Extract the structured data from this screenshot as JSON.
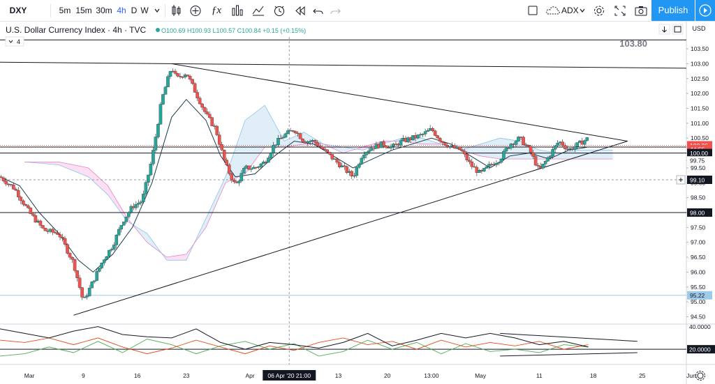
{
  "toolbar": {
    "symbol": "DXY",
    "intervals": [
      "5m",
      "15m",
      "30m",
      "4h",
      "D",
      "W"
    ],
    "active_interval": "4h",
    "indicator_name": "ADX",
    "publish_label": "Publish"
  },
  "legend": {
    "title": "U.S. Dollar Currency Index · 4h · TVC",
    "ohlc": "O100.69 H100.93 L100.57 C100.84 +0.15 (+0.15%)",
    "collapse_count": "4"
  },
  "price_axis": {
    "currency": "USD",
    "ticks": [
      "103.50",
      "103.00",
      "102.50",
      "102.00",
      "101.50",
      "101.00",
      "100.50",
      "100.00",
      "99.75",
      "99.50",
      "99.00",
      "98.50",
      "98.00",
      "97.50",
      "97.00",
      "96.50",
      "96.00",
      "95.50",
      "95.00",
      "94.50"
    ],
    "labels": [
      {
        "text": "103.80",
        "kind": "plain"
      },
      {
        "text": "100.26",
        "kind": "red"
      },
      {
        "text": "44:55",
        "kind": "red"
      },
      {
        "text": "100.00",
        "kind": "dark"
      },
      {
        "text": "99.75",
        "kind": "plain"
      },
      {
        "text": "99.10",
        "kind": "dark"
      },
      {
        "text": "98.00",
        "kind": "dark"
      },
      {
        "text": "95.22",
        "kind": "blue"
      }
    ]
  },
  "indicator_axis": {
    "ticks": [
      "40.0000",
      "20.0000"
    ]
  },
  "time_axis": {
    "ticks": [
      "Mar",
      "9",
      "16",
      "23",
      "Apr",
      "13",
      "20",
      "13:00",
      "May",
      "11",
      "18",
      "25",
      "Jun"
    ],
    "crosshair_label": "06 Apr '20  21:00"
  },
  "colors": {
    "up": "#26a69a",
    "down": "#ef5350",
    "accent": "#2196f3",
    "adx": "#131722",
    "di_plus": "#4caf50",
    "di_minus": "#e64a19",
    "kumo_bull": "#d6e8f5",
    "kumo_bear": "#fbd4ee"
  },
  "chart_data": {
    "type": "candlestick",
    "title": "U.S. Dollar Currency Index · 4h · TVC",
    "ylim": [
      94.3,
      103.9
    ],
    "xlim": [
      0,
      140
    ],
    "x_ticks": [
      {
        "label": "Mar",
        "x": 6
      },
      {
        "label": "9",
        "x": 17
      },
      {
        "label": "16",
        "x": 28
      },
      {
        "label": "23",
        "x": 38
      },
      {
        "label": "Apr",
        "x": 51
      },
      {
        "label": "13",
        "x": 69
      },
      {
        "label": "20",
        "x": 79
      },
      {
        "label": "13:00",
        "x": 88
      },
      {
        "label": "May",
        "x": 98
      },
      {
        "label": "11",
        "x": 110
      },
      {
        "label": "18",
        "x": 121
      },
      {
        "label": "25",
        "x": 131
      },
      {
        "label": "Jun",
        "x": 141
      }
    ],
    "price_path": [
      [
        0,
        99.2
      ],
      [
        3,
        98.8
      ],
      [
        6,
        98.0
      ],
      [
        9,
        97.4
      ],
      [
        12,
        97.3
      ],
      [
        15,
        96.3
      ],
      [
        17,
        95.0
      ],
      [
        19,
        95.7
      ],
      [
        21,
        96.4
      ],
      [
        23,
        96.9
      ],
      [
        25,
        97.7
      ],
      [
        27,
        98.2
      ],
      [
        29,
        98.4
      ],
      [
        31,
        99.8
      ],
      [
        33,
        101.8
      ],
      [
        35,
        102.9
      ],
      [
        36,
        102.5
      ],
      [
        38,
        102.7
      ],
      [
        40,
        102.0
      ],
      [
        42,
        101.3
      ],
      [
        44,
        100.8
      ],
      [
        46,
        99.6
      ],
      [
        48,
        98.9
      ],
      [
        50,
        99.5
      ],
      [
        52,
        99.5
      ],
      [
        54,
        99.7
      ],
      [
        56,
        100.3
      ],
      [
        58,
        100.6
      ],
      [
        60,
        100.8
      ],
      [
        62,
        100.4
      ],
      [
        64,
        100.4
      ],
      [
        66,
        100.1
      ],
      [
        68,
        99.8
      ],
      [
        70,
        99.5
      ],
      [
        72,
        99.2
      ],
      [
        74,
        100.0
      ],
      [
        76,
        100.2
      ],
      [
        78,
        100.3
      ],
      [
        80,
        100.2
      ],
      [
        82,
        100.4
      ],
      [
        84,
        100.5
      ],
      [
        86,
        100.6
      ],
      [
        88,
        100.8
      ],
      [
        90,
        100.4
      ],
      [
        92,
        100.2
      ],
      [
        94,
        100.1
      ],
      [
        96,
        99.6
      ],
      [
        98,
        99.3
      ],
      [
        100,
        99.6
      ],
      [
        102,
        99.8
      ],
      [
        104,
        100.3
      ],
      [
        106,
        100.5
      ],
      [
        108,
        100.1
      ],
      [
        110,
        99.4
      ],
      [
        112,
        99.9
      ],
      [
        114,
        100.4
      ],
      [
        116,
        100.1
      ],
      [
        118,
        100.3
      ],
      [
        120,
        100.5
      ]
    ],
    "ma": [
      [
        0,
        99.2
      ],
      [
        4,
        98.9
      ],
      [
        8,
        98.0
      ],
      [
        12,
        97.3
      ],
      [
        16,
        96.4
      ],
      [
        19,
        96.0
      ],
      [
        23,
        96.6
      ],
      [
        27,
        97.5
      ],
      [
        31,
        99.0
      ],
      [
        35,
        101.2
      ],
      [
        38,
        101.8
      ],
      [
        42,
        101.1
      ],
      [
        45,
        99.9
      ],
      [
        48,
        99.2
      ],
      [
        52,
        99.3
      ],
      [
        56,
        99.9
      ],
      [
        60,
        100.4
      ],
      [
        64,
        100.3
      ],
      [
        68,
        99.9
      ],
      [
        72,
        99.5
      ],
      [
        76,
        99.8
      ],
      [
        80,
        100.1
      ],
      [
        84,
        100.3
      ],
      [
        88,
        100.5
      ],
      [
        92,
        100.3
      ],
      [
        96,
        99.9
      ],
      [
        100,
        99.5
      ],
      [
        104,
        99.9
      ],
      [
        108,
        100.0
      ],
      [
        112,
        99.8
      ],
      [
        116,
        100.1
      ],
      [
        120,
        100.2
      ]
    ],
    "kumo_a": [
      [
        5,
        99.7
      ],
      [
        12,
        99.6
      ],
      [
        18,
        99.2
      ],
      [
        22,
        98.6
      ],
      [
        26,
        97.7
      ],
      [
        30,
        97.3
      ],
      [
        34,
        96.4
      ],
      [
        38,
        96.4
      ],
      [
        42,
        97.8
      ],
      [
        46,
        99.2
      ],
      [
        50,
        101.1
      ],
      [
        54,
        101.6
      ],
      [
        58,
        100.4
      ],
      [
        62,
        100.7
      ],
      [
        66,
        100.3
      ],
      [
        70,
        100.2
      ],
      [
        74,
        100.1
      ],
      [
        78,
        100.3
      ],
      [
        82,
        100.5
      ],
      [
        86,
        100.5
      ],
      [
        90,
        100.3
      ],
      [
        94,
        100.1
      ],
      [
        98,
        100.3
      ],
      [
        102,
        100.5
      ],
      [
        106,
        100.4
      ],
      [
        110,
        100.1
      ],
      [
        114,
        100.0
      ],
      [
        118,
        100.1
      ],
      [
        122,
        100.1
      ],
      [
        125,
        100.1
      ]
    ],
    "kumo_b": [
      [
        5,
        99.7
      ],
      [
        12,
        99.7
      ],
      [
        18,
        99.5
      ],
      [
        22,
        98.9
      ],
      [
        26,
        97.8
      ],
      [
        30,
        97.0
      ],
      [
        34,
        96.5
      ],
      [
        38,
        96.6
      ],
      [
        42,
        97.5
      ],
      [
        46,
        99.0
      ],
      [
        50,
        99.3
      ],
      [
        54,
        100.2
      ],
      [
        58,
        100.2
      ],
      [
        62,
        100.3
      ],
      [
        66,
        100.3
      ],
      [
        70,
        100.0
      ],
      [
        74,
        100.2
      ],
      [
        78,
        100.4
      ],
      [
        82,
        100.4
      ],
      [
        86,
        100.3
      ],
      [
        90,
        100.3
      ],
      [
        94,
        100.1
      ],
      [
        98,
        99.9
      ],
      [
        102,
        99.8
      ],
      [
        106,
        99.8
      ],
      [
        110,
        99.8
      ],
      [
        114,
        99.8
      ],
      [
        118,
        99.8
      ],
      [
        122,
        99.8
      ],
      [
        125,
        99.8
      ]
    ],
    "trendlines": [
      {
        "from": [
          35,
          103.0
        ],
        "to": [
          128,
          100.4
        ]
      },
      {
        "from": [
          15,
          94.55
        ],
        "to": [
          128,
          100.4
        ]
      },
      {
        "from": [
          0,
          103.05
        ],
        "to": [
          140,
          102.85
        ]
      }
    ],
    "h_lines": [
      {
        "y": 103.8,
        "style": "solid"
      },
      {
        "y": 100.26,
        "style": "dotted-red"
      },
      {
        "y": 100.2,
        "style": "solid"
      },
      {
        "y": 100.0,
        "style": "solid"
      },
      {
        "y": 99.1,
        "style": "dashed"
      },
      {
        "y": 98.0,
        "style": "solid"
      },
      {
        "y": 95.22,
        "style": "blue"
      }
    ],
    "indicator": {
      "name": "ADX",
      "ylim": [
        9,
        41
      ],
      "ticks": [
        40,
        20
      ],
      "level": 20,
      "adx": [
        [
          0,
          38
        ],
        [
          5,
          34
        ],
        [
          10,
          30
        ],
        [
          15,
          36
        ],
        [
          20,
          40
        ],
        [
          25,
          33
        ],
        [
          30,
          31
        ],
        [
          35,
          30
        ],
        [
          40,
          38
        ],
        [
          45,
          26
        ],
        [
          50,
          20
        ],
        [
          55,
          26
        ],
        [
          60,
          24
        ],
        [
          65,
          21
        ],
        [
          70,
          26
        ],
        [
          75,
          34
        ],
        [
          80,
          23
        ],
        [
          85,
          28
        ],
        [
          90,
          34
        ],
        [
          95,
          30
        ],
        [
          100,
          34
        ],
        [
          105,
          30
        ],
        [
          110,
          24
        ],
        [
          115,
          27
        ],
        [
          120,
          22
        ]
      ],
      "di_plus": [
        [
          0,
          14
        ],
        [
          5,
          16
        ],
        [
          10,
          22
        ],
        [
          15,
          17
        ],
        [
          20,
          27
        ],
        [
          25,
          17
        ],
        [
          30,
          29
        ],
        [
          35,
          24
        ],
        [
          40,
          16
        ],
        [
          45,
          23
        ],
        [
          50,
          27
        ],
        [
          55,
          20
        ],
        [
          60,
          25
        ],
        [
          65,
          14
        ],
        [
          70,
          18
        ],
        [
          75,
          28
        ],
        [
          80,
          20
        ],
        [
          85,
          26
        ],
        [
          90,
          16
        ],
        [
          95,
          25
        ],
        [
          100,
          18
        ],
        [
          105,
          20
        ],
        [
          110,
          17
        ],
        [
          115,
          24
        ],
        [
          120,
          22
        ]
      ],
      "di_minus": [
        [
          0,
          28
        ],
        [
          5,
          26
        ],
        [
          10,
          30
        ],
        [
          15,
          24
        ],
        [
          20,
          30
        ],
        [
          25,
          22
        ],
        [
          30,
          16
        ],
        [
          35,
          21
        ],
        [
          40,
          28
        ],
        [
          45,
          22
        ],
        [
          50,
          16
        ],
        [
          55,
          23
        ],
        [
          60,
          19
        ],
        [
          65,
          26
        ],
        [
          70,
          30
        ],
        [
          75,
          24
        ],
        [
          80,
          27
        ],
        [
          85,
          20
        ],
        [
          90,
          28
        ],
        [
          95,
          22
        ],
        [
          100,
          26
        ],
        [
          105,
          23
        ],
        [
          110,
          27
        ],
        [
          115,
          20
        ],
        [
          120,
          24
        ]
      ],
      "trendlines": [
        {
          "from": [
            102,
            34
          ],
          "to": [
            130,
            27
          ]
        },
        {
          "from": [
            102,
            14
          ],
          "to": [
            130,
            17
          ]
        }
      ]
    }
  }
}
